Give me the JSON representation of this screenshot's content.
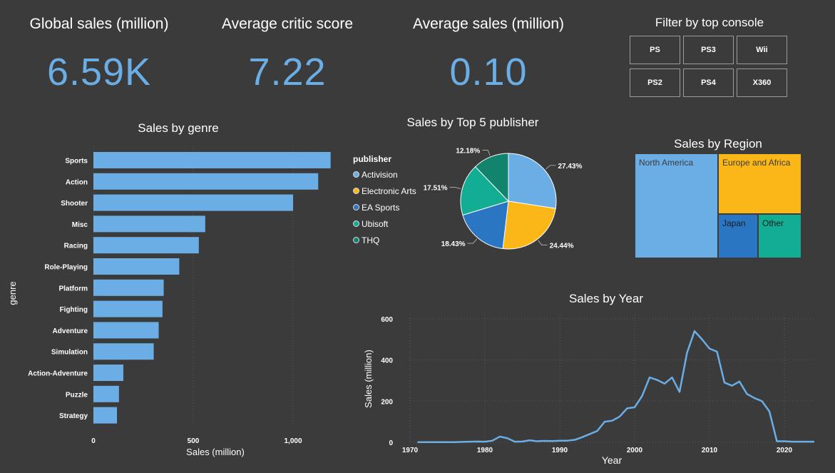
{
  "kpis": [
    {
      "title": "Global sales (million)",
      "value": "6.59K"
    },
    {
      "title": "Average critic score",
      "value": "7.22"
    },
    {
      "title": "Average sales (million)",
      "value": "0.10"
    }
  ],
  "console_filter": {
    "title": "Filter by top console",
    "buttons": [
      "PS",
      "PS3",
      "Wii",
      "PS2",
      "PS4",
      "X360"
    ]
  },
  "colors": {
    "background": "#3b3b3b",
    "accent": "#6baee6",
    "series": [
      "#6baee6",
      "#fbb717",
      "#2a76c2",
      "#12ad93",
      "#12846e"
    ]
  },
  "chart_data": [
    {
      "type": "bar",
      "orientation": "horizontal",
      "title": "Sales by genre",
      "xlabel": "Sales (million)",
      "ylabel": "genre",
      "xlim": [
        0,
        1200
      ],
      "xticks": [
        0,
        500,
        1000
      ],
      "xtick_labels": [
        "0",
        "500",
        "1,000"
      ],
      "categories": [
        "Sports",
        "Action",
        "Shooter",
        "Misc",
        "Racing",
        "Role-Playing",
        "Platform",
        "Fighting",
        "Adventure",
        "Simulation",
        "Action-Adventure",
        "Puzzle",
        "Strategy"
      ],
      "values": [
        1188,
        1126,
        1000,
        560,
        528,
        430,
        352,
        346,
        327,
        302,
        150,
        128,
        118
      ]
    },
    {
      "type": "pie",
      "title": "Sales by Top 5 publisher",
      "legend_title": "publisher",
      "labels": [
        "Activision",
        "Electronic Arts",
        "EA Sports",
        "Ubisoft",
        "THQ"
      ],
      "values": [
        27.43,
        24.44,
        18.43,
        17.51,
        12.18
      ],
      "value_labels": [
        "27.43%",
        "24.44%",
        "18.43%",
        "17.51%",
        "12.18%"
      ]
    },
    {
      "type": "treemap",
      "title": "Sales by Region",
      "labels": [
        "North America",
        "Europe and Africa",
        "Japan",
        "Other"
      ],
      "values": [
        50,
        29,
        10,
        11
      ]
    },
    {
      "type": "line",
      "title": "Sales by Year",
      "xlabel": "Year",
      "ylabel": "Sales (million)",
      "xlim": [
        1970,
        2024
      ],
      "ylim": [
        0,
        620
      ],
      "xticks": [
        1970,
        1980,
        1990,
        2000,
        2010,
        2020
      ],
      "yticks": [
        0,
        200,
        400,
        600
      ],
      "x": [
        1971,
        1972,
        1973,
        1974,
        1975,
        1976,
        1977,
        1978,
        1979,
        1980,
        1981,
        1982,
        1983,
        1984,
        1985,
        1986,
        1987,
        1988,
        1989,
        1990,
        1991,
        1992,
        1993,
        1994,
        1995,
        1996,
        1997,
        1998,
        1999,
        2000,
        2001,
        2002,
        2003,
        2004,
        2005,
        2006,
        2007,
        2008,
        2009,
        2010,
        2011,
        2012,
        2013,
        2014,
        2015,
        2016,
        2017,
        2018,
        2019,
        2020,
        2021,
        2022,
        2023,
        2024
      ],
      "y": [
        1,
        1,
        1,
        1,
        1,
        1,
        2,
        3,
        4,
        3,
        8,
        28,
        20,
        3,
        4,
        10,
        5,
        7,
        6,
        8,
        8,
        12,
        25,
        40,
        55,
        100,
        105,
        125,
        165,
        170,
        225,
        315,
        303,
        285,
        315,
        245,
        435,
        540,
        500,
        455,
        440,
        290,
        275,
        295,
        235,
        215,
        200,
        150,
        5,
        5,
        3,
        3,
        3,
        3
      ]
    }
  ]
}
